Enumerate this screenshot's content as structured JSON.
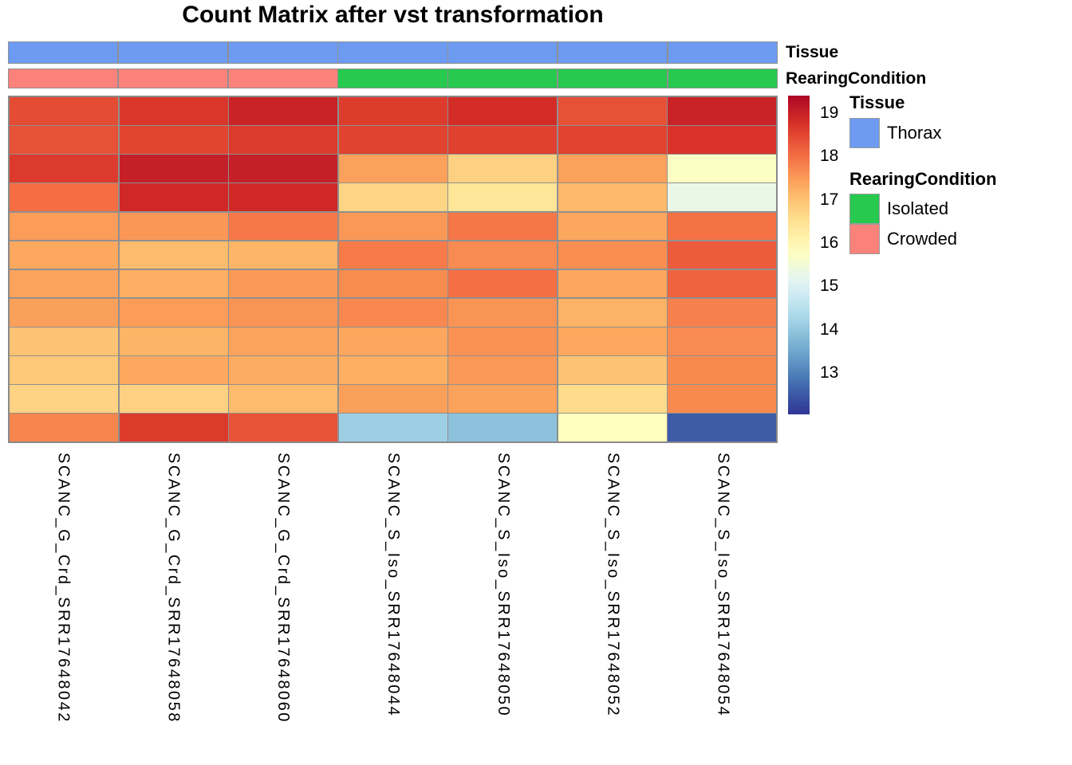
{
  "title": "Count Matrix after vst transformation",
  "colors": {
    "tissue_thorax": "#6d9bf2",
    "rearing_isolated": "#27c94f",
    "rearing_crowded": "#fa827b",
    "grid": "#909090",
    "colormap_stops": [
      "#313695",
      "#4575b4",
      "#74add1",
      "#abd9e9",
      "#e0f3f8",
      "#ffffbf",
      "#fee090",
      "#fdae61",
      "#f46d43",
      "#d73027",
      "#a50026"
    ],
    "value_domain": [
      12.1,
      19.5
    ]
  },
  "annotation_rows": [
    {
      "name": "Tissue"
    },
    {
      "name": "RearingCondition"
    }
  ],
  "legend": {
    "scale_ticks": [
      19,
      18,
      17,
      16,
      15,
      14,
      13
    ],
    "scale_range": [
      12.05,
      19.4
    ],
    "tissue": {
      "title": "Tissue",
      "items": [
        {
          "label": "Thorax",
          "color_key": "tissue_thorax"
        }
      ]
    },
    "rearing": {
      "title": "RearingCondition",
      "items": [
        {
          "label": "Isolated",
          "color_key": "rearing_isolated"
        },
        {
          "label": "Crowded",
          "color_key": "rearing_crowded"
        }
      ]
    }
  },
  "chart_data": {
    "type": "heatmap",
    "title": "Count Matrix after vst transformation",
    "columns": [
      "SCANC_G_Crd_SRR17648042",
      "SCANC_G_Crd_SRR17648058",
      "SCANC_G_Crd_SRR17648060",
      "SCANC_S_Iso_SRR17648044",
      "SCANC_S_Iso_SRR17648050",
      "SCANC_S_Iso_SRR17648052",
      "SCANC_S_Iso_SRR17648054"
    ],
    "column_annotations": {
      "Tissue": [
        "Thorax",
        "Thorax",
        "Thorax",
        "Thorax",
        "Thorax",
        "Thorax",
        "Thorax"
      ],
      "RearingCondition": [
        "Crowded",
        "Crowded",
        "Crowded",
        "Isolated",
        "Isolated",
        "Isolated",
        "Isolated"
      ]
    },
    "colorbar_range": [
      12.05,
      19.4
    ],
    "colorbar_ticks": [
      19,
      18,
      17,
      16,
      15,
      14,
      13
    ],
    "values": [
      [
        18.42,
        18.68,
        18.97,
        18.61,
        18.82,
        18.36,
        18.97
      ],
      [
        18.36,
        18.51,
        18.64,
        18.53,
        18.56,
        18.54,
        18.72
      ],
      [
        18.64,
        19.02,
        19.02,
        17.43,
        16.78,
        17.43,
        15.75
      ],
      [
        18.02,
        18.88,
        18.88,
        16.72,
        16.4,
        17.1,
        15.3
      ],
      [
        17.48,
        17.54,
        17.89,
        17.52,
        17.91,
        17.36,
        17.96
      ],
      [
        17.34,
        17.09,
        17.18,
        17.86,
        17.68,
        17.64,
        18.23
      ],
      [
        17.39,
        17.25,
        17.51,
        17.67,
        18.0,
        17.36,
        18.14
      ],
      [
        17.44,
        17.47,
        17.58,
        17.71,
        17.58,
        17.21,
        17.79
      ],
      [
        16.97,
        17.19,
        17.39,
        17.36,
        17.6,
        17.34,
        17.68
      ],
      [
        16.9,
        17.34,
        17.29,
        17.27,
        17.52,
        16.97,
        17.69
      ],
      [
        16.73,
        16.76,
        17.09,
        17.44,
        17.42,
        16.6,
        17.69
      ],
      [
        17.74,
        18.63,
        18.32,
        14.14,
        13.91,
        15.8,
        12.54
      ]
    ]
  }
}
